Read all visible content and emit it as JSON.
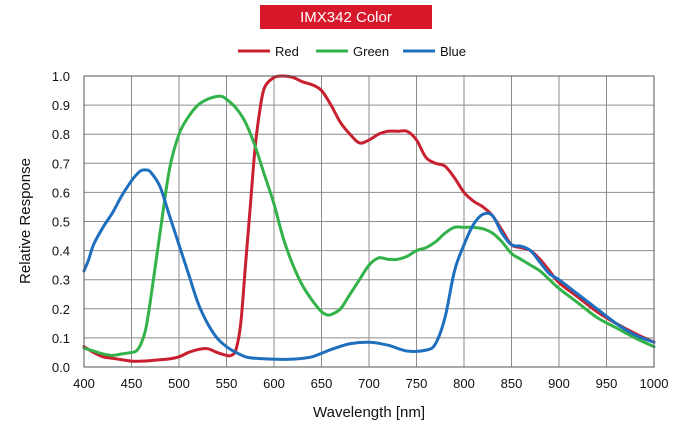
{
  "chart_data": {
    "type": "line",
    "title": "IMX342 Color",
    "title_bg_color": "#d7182a",
    "xlabel": "Wavelength [nm]",
    "ylabel": "Relative Response",
    "xlim": [
      400,
      1000
    ],
    "ylim": [
      0,
      1.0
    ],
    "x_ticks": [
      400,
      450,
      500,
      550,
      600,
      650,
      700,
      750,
      800,
      850,
      900,
      950,
      1000
    ],
    "y_ticks": [
      0.0,
      0.1,
      0.2,
      0.3,
      0.4,
      0.5,
      0.6,
      0.7,
      0.8,
      0.9,
      1.0
    ],
    "x_tick_labels": [
      "400",
      "450",
      "500",
      "550",
      "600",
      "650",
      "700",
      "750",
      "800",
      "850",
      "900",
      "950",
      "1000"
    ],
    "y_tick_labels": [
      "0.0",
      "0.1",
      "0.2",
      "0.3",
      "0.4",
      "0.5",
      "0.6",
      "0.7",
      "0.8",
      "0.9",
      "1.0"
    ],
    "grid": true,
    "legend_position": "top-center",
    "series": [
      {
        "name": "Red",
        "color": "#c8202f",
        "points": [
          [
            400,
            0.07
          ],
          [
            410,
            0.05
          ],
          [
            420,
            0.035
          ],
          [
            430,
            0.03
          ],
          [
            440,
            0.025
          ],
          [
            450,
            0.02
          ],
          [
            460,
            0.02
          ],
          [
            470,
            0.022
          ],
          [
            480,
            0.025
          ],
          [
            490,
            0.028
          ],
          [
            500,
            0.035
          ],
          [
            510,
            0.05
          ],
          [
            520,
            0.06
          ],
          [
            530,
            0.063
          ],
          [
            540,
            0.05
          ],
          [
            550,
            0.04
          ],
          [
            555,
            0.04
          ],
          [
            560,
            0.06
          ],
          [
            565,
            0.15
          ],
          [
            570,
            0.35
          ],
          [
            575,
            0.55
          ],
          [
            580,
            0.75
          ],
          [
            585,
            0.88
          ],
          [
            590,
            0.96
          ],
          [
            600,
            0.995
          ],
          [
            610,
            1.0
          ],
          [
            620,
            0.995
          ],
          [
            630,
            0.98
          ],
          [
            640,
            0.97
          ],
          [
            650,
            0.95
          ],
          [
            660,
            0.9
          ],
          [
            670,
            0.84
          ],
          [
            680,
            0.8
          ],
          [
            690,
            0.77
          ],
          [
            700,
            0.78
          ],
          [
            710,
            0.8
          ],
          [
            720,
            0.81
          ],
          [
            730,
            0.81
          ],
          [
            740,
            0.81
          ],
          [
            750,
            0.78
          ],
          [
            760,
            0.72
          ],
          [
            770,
            0.7
          ],
          [
            780,
            0.69
          ],
          [
            790,
            0.65
          ],
          [
            800,
            0.6
          ],
          [
            810,
            0.57
          ],
          [
            820,
            0.55
          ],
          [
            830,
            0.52
          ],
          [
            840,
            0.47
          ],
          [
            850,
            0.42
          ],
          [
            860,
            0.41
          ],
          [
            870,
            0.4
          ],
          [
            880,
            0.37
          ],
          [
            890,
            0.33
          ],
          [
            900,
            0.29
          ],
          [
            920,
            0.24
          ],
          [
            940,
            0.19
          ],
          [
            960,
            0.15
          ],
          [
            980,
            0.115
          ],
          [
            1000,
            0.085
          ]
        ]
      },
      {
        "name": "Green",
        "color": "#33b24a",
        "points": [
          [
            400,
            0.065
          ],
          [
            410,
            0.055
          ],
          [
            420,
            0.045
          ],
          [
            430,
            0.04
          ],
          [
            440,
            0.045
          ],
          [
            450,
            0.05
          ],
          [
            455,
            0.055
          ],
          [
            460,
            0.08
          ],
          [
            465,
            0.13
          ],
          [
            470,
            0.23
          ],
          [
            480,
            0.46
          ],
          [
            490,
            0.68
          ],
          [
            500,
            0.8
          ],
          [
            510,
            0.86
          ],
          [
            520,
            0.9
          ],
          [
            530,
            0.92
          ],
          [
            540,
            0.93
          ],
          [
            545,
            0.93
          ],
          [
            550,
            0.92
          ],
          [
            560,
            0.89
          ],
          [
            570,
            0.84
          ],
          [
            580,
            0.76
          ],
          [
            590,
            0.66
          ],
          [
            600,
            0.56
          ],
          [
            610,
            0.44
          ],
          [
            620,
            0.35
          ],
          [
            630,
            0.28
          ],
          [
            640,
            0.23
          ],
          [
            650,
            0.19
          ],
          [
            655,
            0.18
          ],
          [
            660,
            0.18
          ],
          [
            670,
            0.2
          ],
          [
            680,
            0.25
          ],
          [
            690,
            0.3
          ],
          [
            700,
            0.35
          ],
          [
            710,
            0.375
          ],
          [
            720,
            0.37
          ],
          [
            730,
            0.37
          ],
          [
            740,
            0.38
          ],
          [
            750,
            0.4
          ],
          [
            760,
            0.41
          ],
          [
            770,
            0.43
          ],
          [
            780,
            0.46
          ],
          [
            790,
            0.48
          ],
          [
            800,
            0.48
          ],
          [
            810,
            0.48
          ],
          [
            820,
            0.475
          ],
          [
            830,
            0.46
          ],
          [
            840,
            0.43
          ],
          [
            850,
            0.39
          ],
          [
            860,
            0.37
          ],
          [
            870,
            0.35
          ],
          [
            880,
            0.33
          ],
          [
            890,
            0.3
          ],
          [
            900,
            0.27
          ],
          [
            920,
            0.22
          ],
          [
            940,
            0.17
          ],
          [
            960,
            0.135
          ],
          [
            980,
            0.1
          ],
          [
            1000,
            0.07
          ]
        ]
      },
      {
        "name": "Blue",
        "color": "#1f6fbf",
        "points": [
          [
            400,
            0.33
          ],
          [
            405,
            0.37
          ],
          [
            410,
            0.42
          ],
          [
            420,
            0.48
          ],
          [
            430,
            0.53
          ],
          [
            440,
            0.59
          ],
          [
            450,
            0.64
          ],
          [
            455,
            0.66
          ],
          [
            460,
            0.675
          ],
          [
            465,
            0.677
          ],
          [
            470,
            0.67
          ],
          [
            480,
            0.62
          ],
          [
            490,
            0.52
          ],
          [
            500,
            0.42
          ],
          [
            510,
            0.32
          ],
          [
            520,
            0.22
          ],
          [
            530,
            0.15
          ],
          [
            540,
            0.1
          ],
          [
            550,
            0.07
          ],
          [
            560,
            0.05
          ],
          [
            570,
            0.035
          ],
          [
            580,
            0.03
          ],
          [
            600,
            0.027
          ],
          [
            620,
            0.027
          ],
          [
            640,
            0.035
          ],
          [
            660,
            0.06
          ],
          [
            680,
            0.08
          ],
          [
            700,
            0.085
          ],
          [
            720,
            0.075
          ],
          [
            740,
            0.055
          ],
          [
            760,
            0.058
          ],
          [
            770,
            0.08
          ],
          [
            780,
            0.17
          ],
          [
            790,
            0.33
          ],
          [
            800,
            0.42
          ],
          [
            810,
            0.49
          ],
          [
            820,
            0.525
          ],
          [
            830,
            0.52
          ],
          [
            840,
            0.46
          ],
          [
            850,
            0.42
          ],
          [
            860,
            0.415
          ],
          [
            870,
            0.4
          ],
          [
            880,
            0.36
          ],
          [
            890,
            0.32
          ],
          [
            900,
            0.3
          ],
          [
            920,
            0.25
          ],
          [
            940,
            0.2
          ],
          [
            960,
            0.15
          ],
          [
            980,
            0.11
          ],
          [
            1000,
            0.085
          ]
        ]
      }
    ]
  }
}
